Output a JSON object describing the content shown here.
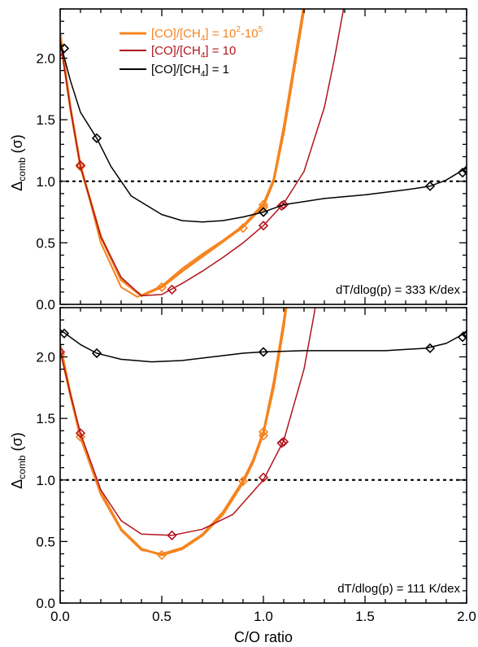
{
  "colors": {
    "orange": "#f5841f",
    "darkred": "#b0141b",
    "black": "#000000"
  },
  "legend": {
    "entries": [
      {
        "pre": "[CO]/[CH",
        "sub": "4",
        "mid": "] = 10",
        "sup1": "2",
        "dash": "-10",
        "sup2": "5",
        "color": "orange"
      },
      {
        "pre": "[CO]/[CH",
        "sub": "4",
        "mid": "] = 10",
        "color": "darkred"
      },
      {
        "pre": "[CO]/[CH",
        "sub": "4",
        "mid": "] = 1",
        "color": "black"
      }
    ]
  },
  "chart_data": [
    {
      "type": "line",
      "annotation": "dT/dlog(p) = 333 K/dex",
      "xlabel": "",
      "ylabel": {
        "main": "Δ",
        "sub": "comb",
        "tail": " (σ)"
      },
      "xlim": [
        0,
        2
      ],
      "ylim": [
        0,
        2.4
      ],
      "yticks": [
        "0.0",
        "0.5",
        "1.0",
        "1.5",
        "2.0"
      ],
      "reference_line_y": 1.0,
      "series": [
        {
          "name": "[CO]/[CH4] = 10^2-10^5",
          "color": "orange",
          "curves": [
            {
              "width": 3.0,
              "x": [
                0,
                0.05,
                0.1,
                0.2,
                0.3,
                0.4,
                0.5,
                0.6,
                0.7,
                0.8,
                0.9,
                1.0,
                1.05,
                1.1,
                1.15,
                1.2,
                1.25
              ],
              "y": [
                2.2,
                1.6,
                1.12,
                0.55,
                0.2,
                0.07,
                0.14,
                0.27,
                0.39,
                0.51,
                0.63,
                0.8,
                1.0,
                1.4,
                1.9,
                2.4,
                2.9
              ]
            },
            {
              "width": 2.0,
              "x": [
                0,
                0.05,
                0.1,
                0.2,
                0.3,
                0.38,
                0.5,
                0.6,
                0.7,
                0.8,
                0.9,
                1.0,
                1.05,
                1.1,
                1.15,
                1.2,
                1.25
              ],
              "y": [
                2.15,
                1.58,
                1.14,
                0.5,
                0.14,
                0.06,
                0.15,
                0.29,
                0.41,
                0.52,
                0.64,
                0.82,
                1.02,
                1.45,
                1.95,
                2.45,
                2.9
              ]
            }
          ],
          "markers": [
            {
              "x": 0.0,
              "y": 2.05
            },
            {
              "x": 0.1,
              "y": 1.12
            },
            {
              "x": 0.5,
              "y": 0.14
            },
            {
              "x": 0.9,
              "y": 0.62
            },
            {
              "x": 1.0,
              "y": 0.79
            },
            {
              "x": 1.0,
              "y": 0.81
            }
          ]
        },
        {
          "name": "[CO]/[CH4] = 10",
          "color": "darkred",
          "curves": [
            {
              "width": 1.5,
              "x": [
                0,
                0.05,
                0.1,
                0.2,
                0.3,
                0.4,
                0.5,
                0.6,
                0.7,
                0.8,
                0.9,
                1.0,
                1.1,
                1.2,
                1.3,
                1.35,
                1.4,
                1.43
              ],
              "y": [
                2.15,
                1.6,
                1.12,
                0.55,
                0.22,
                0.07,
                0.08,
                0.17,
                0.27,
                0.38,
                0.5,
                0.64,
                0.82,
                1.08,
                1.6,
                2.0,
                2.45,
                2.8
              ]
            }
          ],
          "markers": [
            {
              "x": 0.0,
              "y": 2.05
            },
            {
              "x": 0.1,
              "y": 1.13
            },
            {
              "x": 0.55,
              "y": 0.12
            },
            {
              "x": 1.0,
              "y": 0.64
            },
            {
              "x": 1.09,
              "y": 0.8
            },
            {
              "x": 1.1,
              "y": 0.81
            }
          ]
        },
        {
          "name": "[CO]/[CH4] = 1",
          "color": "black",
          "curves": [
            {
              "width": 1.5,
              "x": [
                0,
                0.05,
                0.1,
                0.18,
                0.25,
                0.35,
                0.5,
                0.6,
                0.7,
                0.8,
                0.9,
                1.0,
                1.1,
                1.3,
                1.5,
                1.7,
                1.82,
                1.9,
                2.0
              ],
              "y": [
                2.13,
                1.82,
                1.56,
                1.35,
                1.12,
                0.88,
                0.73,
                0.68,
                0.67,
                0.68,
                0.71,
                0.75,
                0.81,
                0.86,
                0.89,
                0.93,
                0.96,
                1.01,
                1.11
              ]
            }
          ],
          "markers": [
            {
              "x": 0.02,
              "y": 2.08
            },
            {
              "x": 0.18,
              "y": 1.35
            },
            {
              "x": 1.0,
              "y": 0.75
            },
            {
              "x": 1.82,
              "y": 0.96
            },
            {
              "x": 1.98,
              "y": 1.07
            },
            {
              "x": 2.0,
              "y": 1.09
            }
          ]
        }
      ]
    },
    {
      "type": "line",
      "annotation": "dT/dlog(p) = 111 K/dex",
      "xlabel": "C/O ratio",
      "ylabel": {
        "main": "Δ",
        "sub": "comb",
        "tail": " (σ)"
      },
      "xlim": [
        0,
        2
      ],
      "ylim": [
        0,
        2.4
      ],
      "yticks": [
        "0.0",
        "0.5",
        "1.0",
        "1.5",
        "2.0"
      ],
      "xticks": [
        "0.0",
        "0.5",
        "1.0",
        "1.5",
        "2.0"
      ],
      "reference_line_y": 1.0,
      "series": [
        {
          "name": "[CO]/[CH4] = 10^2-10^5",
          "color": "orange",
          "curves": [
            {
              "width": 3.0,
              "x": [
                0,
                0.05,
                0.1,
                0.2,
                0.3,
                0.4,
                0.5,
                0.6,
                0.7,
                0.8,
                0.9,
                0.95,
                1.0,
                1.05,
                1.1,
                1.15
              ],
              "y": [
                2.1,
                1.7,
                1.35,
                0.9,
                0.6,
                0.44,
                0.39,
                0.44,
                0.55,
                0.72,
                0.98,
                1.15,
                1.38,
                1.75,
                2.25,
                2.9
              ]
            },
            {
              "width": 2.0,
              "x": [
                0,
                0.05,
                0.1,
                0.2,
                0.3,
                0.4,
                0.5,
                0.6,
                0.7,
                0.8,
                0.9,
                0.95,
                1.0,
                1.05,
                1.1,
                1.15
              ],
              "y": [
                2.05,
                1.68,
                1.34,
                0.88,
                0.59,
                0.43,
                0.4,
                0.45,
                0.56,
                0.74,
                1.0,
                1.17,
                1.4,
                1.8,
                2.3,
                2.9
              ]
            }
          ],
          "markers": [
            {
              "x": 0.0,
              "y": 2.02
            },
            {
              "x": 0.1,
              "y": 1.35
            },
            {
              "x": 0.5,
              "y": 0.39
            },
            {
              "x": 0.9,
              "y": 0.99
            },
            {
              "x": 1.0,
              "y": 1.36
            },
            {
              "x": 1.0,
              "y": 1.39
            }
          ]
        },
        {
          "name": "[CO]/[CH4] = 10",
          "color": "darkred",
          "curves": [
            {
              "width": 1.5,
              "x": [
                0,
                0.05,
                0.1,
                0.2,
                0.3,
                0.4,
                0.55,
                0.7,
                0.85,
                1.0,
                1.1,
                1.2,
                1.25,
                1.3
              ],
              "y": [
                2.05,
                1.7,
                1.38,
                0.92,
                0.67,
                0.56,
                0.55,
                0.6,
                0.72,
                1.0,
                1.32,
                1.9,
                2.35,
                2.9
              ]
            }
          ],
          "markers": [
            {
              "x": 0.0,
              "y": 2.04
            },
            {
              "x": 0.1,
              "y": 1.38
            },
            {
              "x": 0.55,
              "y": 0.55
            },
            {
              "x": 1.0,
              "y": 1.02
            },
            {
              "x": 1.09,
              "y": 1.3
            },
            {
              "x": 1.1,
              "y": 1.31
            }
          ]
        },
        {
          "name": "[CO]/[CH4] = 1",
          "color": "black",
          "curves": [
            {
              "width": 1.5,
              "x": [
                0,
                0.1,
                0.18,
                0.3,
                0.45,
                0.6,
                0.75,
                0.9,
                1.0,
                1.2,
                1.4,
                1.6,
                1.8,
                1.9,
                2.0
              ],
              "y": [
                2.22,
                2.1,
                2.03,
                1.98,
                1.96,
                1.97,
                2.0,
                2.03,
                2.04,
                2.05,
                2.05,
                2.05,
                2.07,
                2.11,
                2.2
              ]
            }
          ],
          "markers": [
            {
              "x": 0.02,
              "y": 2.19
            },
            {
              "x": 0.18,
              "y": 2.03
            },
            {
              "x": 1.0,
              "y": 2.04
            },
            {
              "x": 1.82,
              "y": 2.07
            },
            {
              "x": 1.98,
              "y": 2.16
            },
            {
              "x": 2.0,
              "y": 2.18
            }
          ]
        }
      ]
    }
  ]
}
